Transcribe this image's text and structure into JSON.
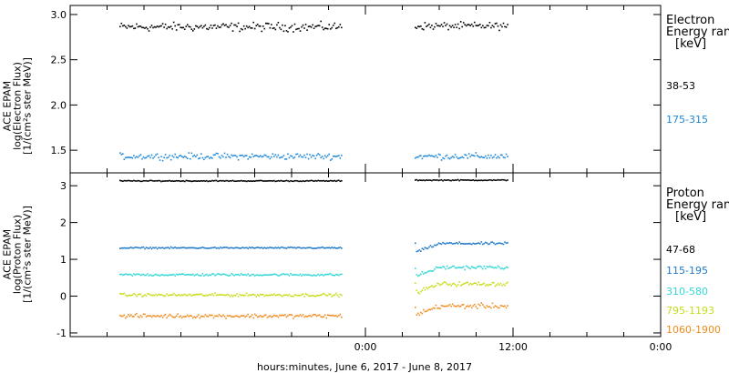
{
  "chart_data": [
    {
      "type": "scatter",
      "panel": "electron",
      "ylabel": [
        "ACE EPAM",
        "log(Electron Flux)",
        "[1/(cm²s ster MeV)]"
      ],
      "ylim": [
        1.25,
        3.1
      ],
      "yticks": [
        1.5,
        2.0,
        2.5,
        3.0
      ],
      "ytick_labels": [
        "1.5",
        "2.0",
        "2.5",
        "3.0"
      ],
      "legend_title": [
        "Electron",
        "Energy ran",
        "[keV]"
      ],
      "series": [
        {
          "name": "38-53",
          "color": "#000000",
          "segments": [
            {
              "x_range": [
                -20.0,
                -2.0
              ],
              "mean": 2.87,
              "spread": 0.07
            },
            {
              "x_range": [
                4.0,
                11.5
              ],
              "mean": 2.88,
              "spread": 0.06
            }
          ]
        },
        {
          "name": "175-315",
          "color": "#1f88d8",
          "segments": [
            {
              "x_range": [
                -20.0,
                -2.0
              ],
              "mean": 1.44,
              "spread": 0.05
            },
            {
              "x_range": [
                4.0,
                11.5
              ],
              "mean": 1.44,
              "spread": 0.05
            }
          ]
        }
      ]
    },
    {
      "type": "scatter",
      "panel": "proton",
      "ylabel": [
        "ACE EPAM",
        "log(Proton Flux)",
        "[1/(cm²s ster MeV)]"
      ],
      "ylim": [
        -1.1,
        3.35
      ],
      "yticks": [
        -1,
        0,
        1,
        2,
        3
      ],
      "ytick_labels": [
        "-1",
        "0",
        "1",
        "2",
        "3"
      ],
      "legend_title": [
        "Proton",
        "Energy ran",
        "[keV]"
      ],
      "series": [
        {
          "name": "47-68",
          "color": "#000000",
          "segments": [
            {
              "x_range": [
                -20.0,
                -2.0
              ],
              "mean": 3.15,
              "spread": 0.02
            },
            {
              "x_range": [
                4.0,
                11.5
              ],
              "mean": 3.17,
              "spread": 0.02
            }
          ]
        },
        {
          "name": "115-195",
          "color": "#1f78c8",
          "segments": [
            {
              "x_range": [
                -20.0,
                -2.0
              ],
              "mean": 1.33,
              "spread": 0.03
            },
            {
              "x_range": [
                4.0,
                11.5
              ],
              "mean": 1.45,
              "spread": 0.05
            }
          ]
        },
        {
          "name": "310-580",
          "color": "#33d6d6",
          "segments": [
            {
              "x_range": [
                -20.0,
                -2.0
              ],
              "mean": 0.6,
              "spread": 0.05
            },
            {
              "x_range": [
                4.0,
                11.5
              ],
              "mean": 0.8,
              "spread": 0.07
            }
          ]
        },
        {
          "name": "795-1193",
          "color": "#c8dc1a",
          "segments": [
            {
              "x_range": [
                -20.0,
                -2.0
              ],
              "mean": 0.05,
              "spread": 0.06
            },
            {
              "x_range": [
                4.0,
                11.5
              ],
              "mean": 0.35,
              "spread": 0.08
            }
          ]
        },
        {
          "name": "1060-1900",
          "color": "#f08c1e",
          "segments": [
            {
              "x_range": [
                -20.0,
                -2.0
              ],
              "mean": -0.52,
              "spread": 0.08
            },
            {
              "x_range": [
                4.0,
                11.5
              ],
              "mean": -0.25,
              "spread": 0.1
            }
          ]
        }
      ]
    }
  ],
  "x_axis": {
    "label": "hours:minutes, June  6, 2017 - June  8, 2017",
    "range_hours": [
      -24,
      24
    ],
    "major_ticks": [
      0,
      12,
      24
    ],
    "major_tick_labels": [
      "0:00",
      "12:00",
      "0:00"
    ],
    "minor_tick_step_hours": 3
  },
  "axis_color": "#000000"
}
